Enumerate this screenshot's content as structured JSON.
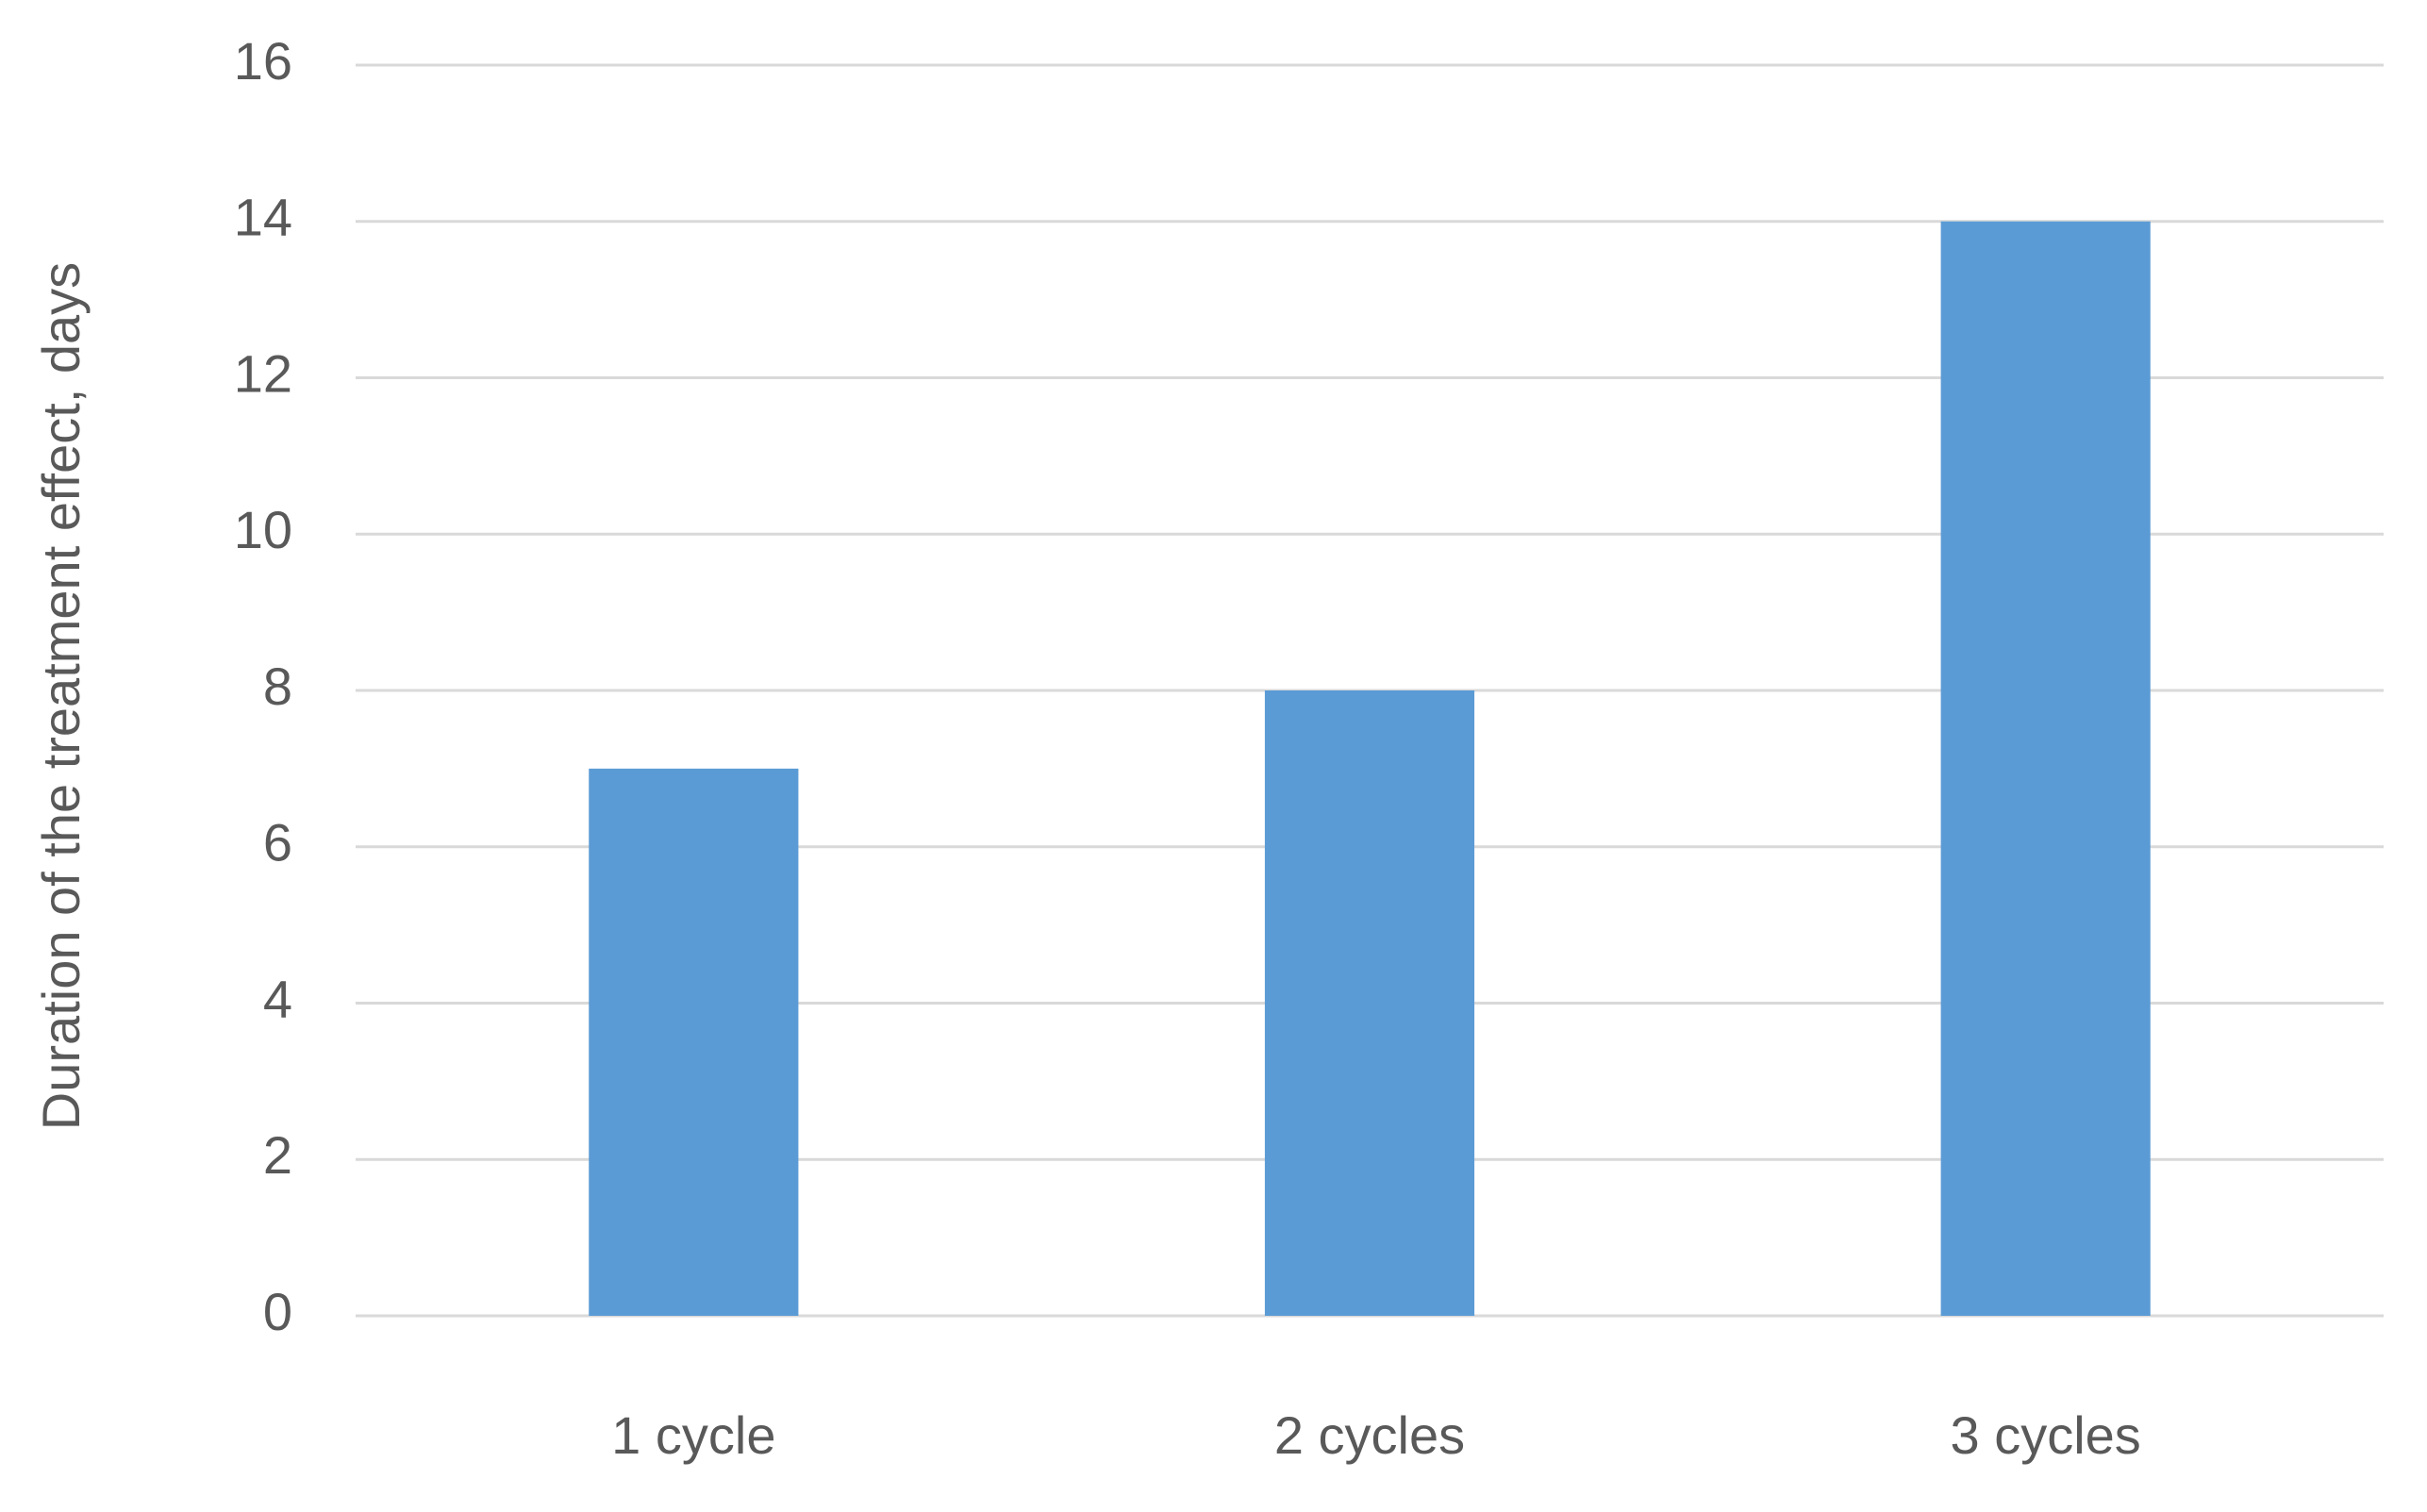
{
  "chart_data": {
    "type": "bar",
    "y_label": "Duration of the treatment effect, days",
    "categories": [
      "1 cycle",
      "2 cycles",
      "3 cycles"
    ],
    "values": [
      7,
      8,
      14
    ],
    "color": "#5b9bd5",
    "ylim": [
      0,
      16
    ],
    "yticks": [
      0,
      2,
      4,
      6,
      8,
      10,
      12,
      14,
      16
    ],
    "grid": true
  }
}
